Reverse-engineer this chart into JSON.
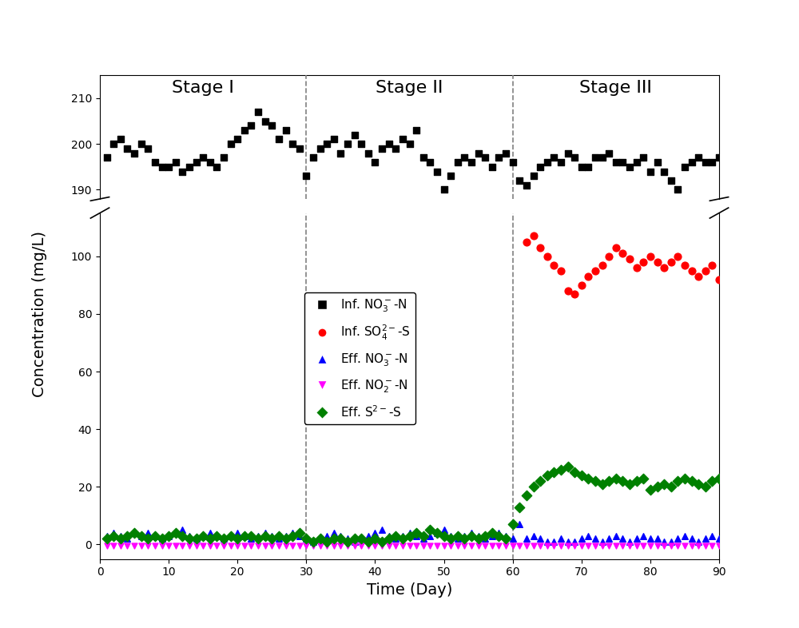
{
  "title_stage1": "Stage I",
  "title_stage2": "Stage II",
  "title_stage3": "Stage III",
  "xlabel": "Time (Day)",
  "ylabel": "Concentration (mg/L)",
  "stage_boundaries": [
    30,
    60
  ],
  "inf_no3_x": [
    1,
    2,
    3,
    4,
    5,
    6,
    7,
    8,
    9,
    10,
    11,
    12,
    13,
    14,
    15,
    16,
    17,
    18,
    19,
    20,
    21,
    22,
    23,
    24,
    25,
    26,
    27,
    28,
    29,
    30,
    31,
    32,
    33,
    34,
    35,
    36,
    37,
    38,
    39,
    40,
    41,
    42,
    43,
    44,
    45,
    46,
    47,
    48,
    49,
    50,
    51,
    52,
    53,
    54,
    55,
    56,
    57,
    58,
    59,
    60,
    61,
    62,
    63,
    64,
    65,
    66,
    67,
    68,
    69,
    70,
    71,
    72,
    73,
    74,
    75,
    76,
    77,
    78,
    79,
    80,
    81,
    82,
    83,
    84,
    85,
    86,
    87,
    88,
    89,
    90
  ],
  "inf_no3_y": [
    197,
    200,
    201,
    199,
    198,
    200,
    199,
    196,
    195,
    195,
    196,
    194,
    195,
    196,
    197,
    196,
    195,
    197,
    200,
    201,
    203,
    204,
    207,
    205,
    204,
    201,
    203,
    200,
    199,
    193,
    197,
    199,
    200,
    201,
    198,
    200,
    202,
    200,
    198,
    196,
    199,
    200,
    199,
    201,
    200,
    203,
    197,
    196,
    194,
    190,
    193,
    196,
    197,
    196,
    198,
    197,
    195,
    197,
    198,
    196,
    192,
    191,
    193,
    195,
    196,
    197,
    196,
    198,
    197,
    195,
    195,
    197,
    197,
    198,
    196,
    196,
    195,
    196,
    197,
    194,
    196,
    194,
    192,
    190,
    195,
    196,
    197,
    196,
    196,
    197
  ],
  "inf_so4_x": [
    62,
    63,
    64,
    65,
    66,
    67,
    68,
    69,
    70,
    71,
    72,
    73,
    74,
    75,
    76,
    77,
    78,
    79,
    80,
    81,
    82,
    83,
    84,
    85,
    86,
    87,
    88,
    89,
    90
  ],
  "inf_so4_y": [
    105,
    107,
    103,
    100,
    97,
    95,
    88,
    87,
    90,
    93,
    95,
    97,
    100,
    103,
    101,
    99,
    96,
    98,
    100,
    98,
    96,
    98,
    100,
    97,
    95,
    93,
    95,
    97,
    92
  ],
  "eff_no3_x": [
    1,
    2,
    3,
    4,
    5,
    6,
    7,
    8,
    9,
    10,
    11,
    12,
    13,
    14,
    15,
    16,
    17,
    18,
    19,
    20,
    21,
    22,
    23,
    24,
    25,
    26,
    27,
    28,
    29,
    30,
    31,
    32,
    33,
    34,
    35,
    36,
    37,
    38,
    39,
    40,
    41,
    42,
    43,
    44,
    45,
    46,
    47,
    48,
    49,
    50,
    51,
    52,
    53,
    54,
    55,
    56,
    57,
    58,
    59,
    60,
    61,
    62,
    63,
    64,
    65,
    66,
    67,
    68,
    69,
    70,
    71,
    72,
    73,
    74,
    75,
    76,
    77,
    78,
    79,
    80,
    81,
    82,
    83,
    84,
    85,
    86,
    87,
    88,
    89,
    90
  ],
  "eff_no3_y": [
    3,
    4,
    3,
    2,
    4,
    3,
    4,
    3,
    2,
    3,
    4,
    5,
    3,
    2,
    3,
    4,
    3,
    2,
    3,
    4,
    3,
    2,
    3,
    4,
    3,
    2,
    3,
    4,
    3,
    2,
    1,
    2,
    3,
    4,
    3,
    2,
    1,
    2,
    3,
    4,
    5,
    3,
    2,
    3,
    4,
    3,
    2,
    3,
    4,
    5,
    3,
    2,
    3,
    4,
    3,
    2,
    3,
    4,
    3,
    2,
    7,
    2,
    3,
    2,
    1,
    1,
    2,
    1,
    1,
    2,
    3,
    2,
    1,
    2,
    3,
    2,
    1,
    2,
    3,
    2,
    2,
    1,
    1,
    2,
    3,
    2,
    1,
    2,
    3,
    2
  ],
  "eff_no2_x": [
    1,
    2,
    3,
    4,
    5,
    6,
    7,
    8,
    9,
    10,
    11,
    12,
    13,
    14,
    15,
    16,
    17,
    18,
    19,
    20,
    21,
    22,
    23,
    24,
    25,
    26,
    27,
    28,
    29,
    30,
    31,
    32,
    33,
    34,
    35,
    36,
    37,
    38,
    39,
    40,
    41,
    42,
    43,
    44,
    45,
    46,
    47,
    48,
    49,
    50,
    51,
    52,
    53,
    54,
    55,
    56,
    57,
    58,
    59,
    60,
    61,
    62,
    63,
    64,
    65,
    66,
    67,
    68,
    69,
    70,
    71,
    72,
    73,
    74,
    75,
    76,
    77,
    78,
    79,
    80,
    81,
    82,
    83,
    84,
    85,
    86,
    87,
    88,
    89,
    90
  ],
  "eff_no2_y": [
    -0.5,
    -0.5,
    -0.5,
    -0.5,
    -0.5,
    -0.5,
    -0.5,
    -0.5,
    -0.5,
    -0.5,
    -0.5,
    -0.5,
    -0.5,
    -0.5,
    -0.5,
    -0.5,
    -0.5,
    -0.5,
    -0.5,
    -0.5,
    -0.5,
    -0.5,
    -0.5,
    -0.5,
    -0.5,
    -0.5,
    -0.5,
    -0.5,
    -0.5,
    -0.5,
    -0.5,
    -0.5,
    -0.5,
    -0.5,
    -0.5,
    -0.5,
    -0.5,
    -0.5,
    -0.5,
    -0.5,
    -0.5,
    -0.5,
    -0.5,
    -0.5,
    -0.5,
    -0.5,
    -0.5,
    -0.5,
    -0.5,
    -0.5,
    -0.5,
    -0.5,
    -0.5,
    -0.5,
    -0.5,
    -0.5,
    -0.5,
    -0.5,
    -0.5,
    -0.5,
    -0.5,
    -0.5,
    -0.5,
    -0.5,
    -0.5,
    -0.5,
    -0.5,
    -0.5,
    -0.5,
    -0.5,
    -0.5,
    -0.5,
    -0.5,
    -0.5,
    -0.5,
    -0.5,
    -0.5,
    -0.5,
    -0.5,
    -0.5,
    -0.5,
    -0.5,
    -0.5,
    -0.5,
    -0.5,
    -0.5,
    -0.5,
    -0.5,
    -0.5,
    -0.5
  ],
  "eff_s2_x": [
    1,
    2,
    3,
    4,
    5,
    6,
    7,
    8,
    9,
    10,
    11,
    12,
    13,
    14,
    15,
    16,
    17,
    18,
    19,
    20,
    21,
    22,
    23,
    24,
    25,
    26,
    27,
    28,
    29,
    30,
    31,
    32,
    33,
    34,
    35,
    36,
    37,
    38,
    39,
    40,
    41,
    42,
    43,
    44,
    45,
    46,
    47,
    48,
    49,
    50,
    51,
    52,
    53,
    54,
    55,
    56,
    57,
    58,
    59,
    60,
    61,
    62,
    63,
    64,
    65,
    66,
    67,
    68,
    69,
    70,
    71,
    72,
    73,
    74,
    75,
    76,
    77,
    78,
    79,
    80,
    81,
    82,
    83,
    84,
    85,
    86,
    87,
    88,
    89,
    90
  ],
  "eff_s2_y": [
    2,
    3,
    2,
    3,
    4,
    3,
    2,
    3,
    2,
    3,
    4,
    3,
    2,
    2,
    3,
    2,
    3,
    2,
    3,
    2,
    3,
    3,
    2,
    3,
    2,
    3,
    2,
    3,
    4,
    2,
    1,
    2,
    1,
    2,
    2,
    1,
    2,
    2,
    1,
    2,
    1,
    2,
    3,
    2,
    3,
    4,
    3,
    5,
    4,
    3,
    2,
    3,
    2,
    3,
    2,
    3,
    4,
    3,
    2,
    7,
    13,
    17,
    20,
    22,
    24,
    25,
    26,
    27,
    25,
    24,
    23,
    22,
    21,
    22,
    23,
    22,
    21,
    22,
    23,
    19,
    20,
    21,
    20,
    22,
    23,
    22,
    21,
    20,
    22,
    23
  ],
  "legend_labels": [
    "Inf. NO₃⁻-N",
    "Inf. SO₄²⁻-S",
    "Eff. NO₃⁻-N",
    "Eff. NO₂⁻-N",
    "Eff. S²⁻-S"
  ],
  "colors": [
    "black",
    "red",
    "blue",
    "magenta",
    "green"
  ],
  "markers": [
    "s",
    "o",
    "^",
    "v",
    "D"
  ],
  "xlim": [
    0,
    90
  ],
  "background": "white"
}
